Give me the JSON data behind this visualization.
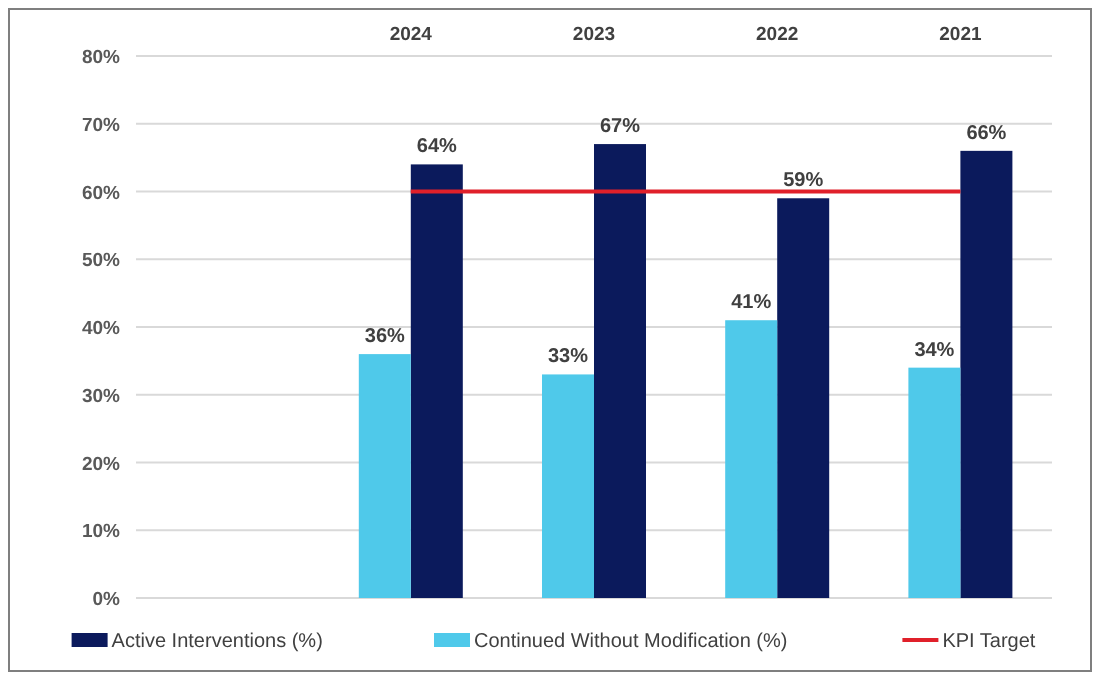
{
  "chart_data": {
    "type": "bar",
    "categories": [
      null,
      "2024",
      "2023",
      "2022",
      "2021"
    ],
    "series": [
      {
        "name": "Active Interventions (%)",
        "color": "#0b1a5c",
        "values": [
          null,
          64,
          67,
          59,
          66
        ],
        "value_labels": [
          null,
          "64%",
          "67%",
          "59%",
          "66%"
        ]
      },
      {
        "name": "Continued Without Modification (%)",
        "color": "#4fc9ea",
        "values": [
          null,
          36,
          33,
          41,
          34
        ],
        "value_labels": [
          null,
          "36%",
          "33%",
          "41%",
          "34%"
        ]
      },
      {
        "name": "KPI Target",
        "type": "line",
        "color": "#e0202a",
        "values": [
          null,
          60,
          60,
          60,
          60
        ]
      }
    ],
    "ylim": [
      0,
      80
    ],
    "yticks": [
      {
        "value": 0,
        "label": "0%"
      },
      {
        "value": 10,
        "label": "10%"
      },
      {
        "value": 20,
        "label": "20%"
      },
      {
        "value": 30,
        "label": "30%"
      },
      {
        "value": 40,
        "label": "40%"
      },
      {
        "value": 50,
        "label": "50%"
      },
      {
        "value": 60,
        "label": "60%"
      },
      {
        "value": 70,
        "label": "70%"
      },
      {
        "value": 80,
        "label": "80%"
      }
    ],
    "grid": "y",
    "legend": "bottom",
    "marker": "none"
  }
}
